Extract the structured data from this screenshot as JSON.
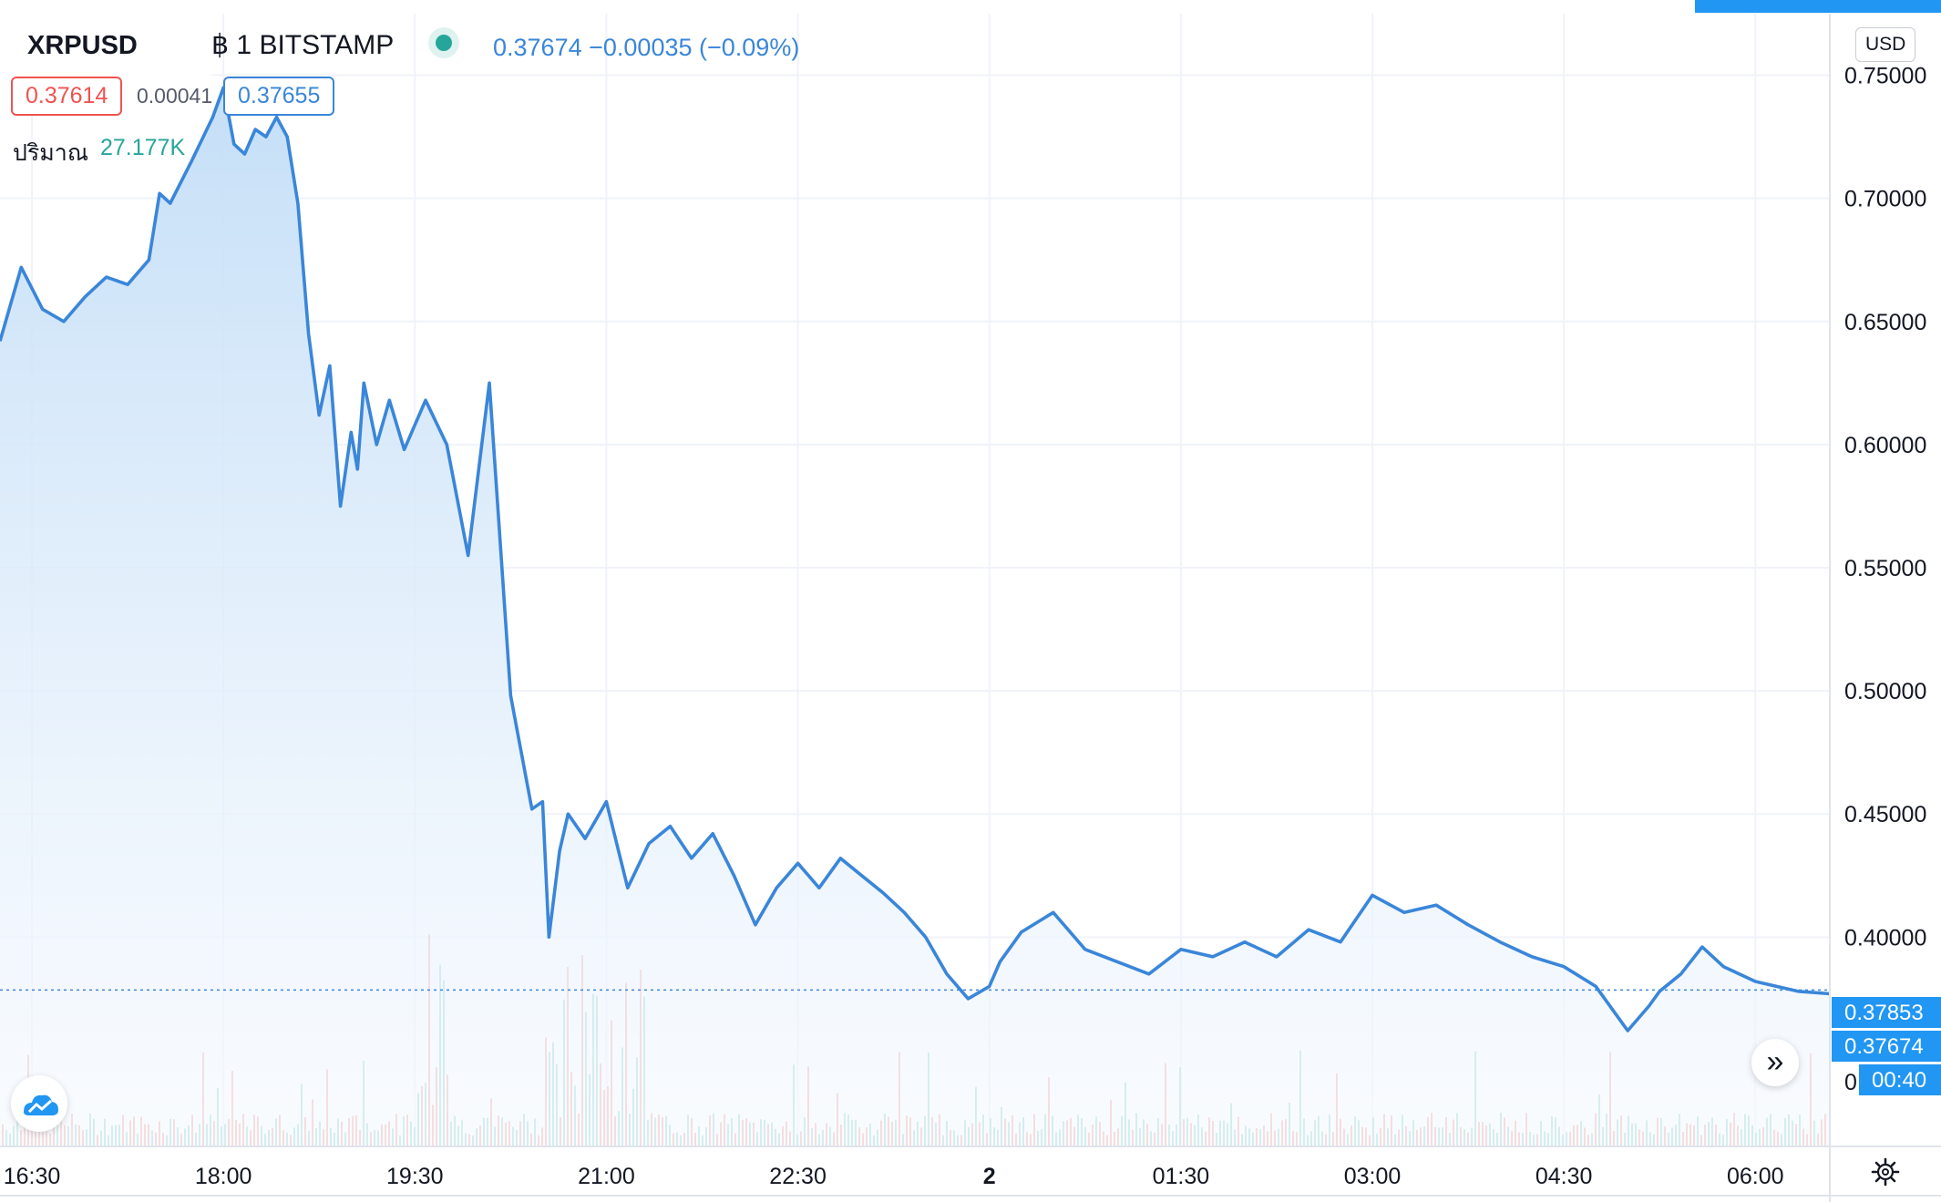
{
  "header": {
    "symbol": "XRPUSD",
    "interval": "฿ 1",
    "exchange": "BITSTAMP",
    "last_price": "0.37674",
    "change": "−0.00035",
    "change_pct": "(−0.09%)",
    "bid": "0.37614",
    "spread": "0.00041",
    "ask": "0.37655",
    "volume_label": "ปริมาณ",
    "volume_value": "27.177K",
    "currency_button": "USD",
    "scroll_right_icon": "double-chevron-right-icon",
    "settings_icon": "gear-icon",
    "logo_icon": "tradingview-cloud-icon"
  },
  "colors": {
    "line": "#3a86d9",
    "area_top": "#c5dff7",
    "area_bottom": "#f5f9fe",
    "volume_up": "#a8dbd5",
    "volume_down": "#f4b6b3",
    "grid": "#f0f3fa",
    "last_price_tag": "#2196f3",
    "accent": "#2196f3"
  },
  "chart_data": {
    "type": "area",
    "title": "XRPUSD",
    "xlabel": "",
    "ylabel": "",
    "x_ticks": [
      "16:30",
      "18:00",
      "19:30",
      "21:00",
      "22:30",
      "2",
      "01:30",
      "03:00",
      "04:30",
      "06:00"
    ],
    "y_ticks": [
      "0.75000",
      "0.70000",
      "0.65000",
      "0.60000",
      "0.55000",
      "0.50000",
      "0.45000",
      "0.40000"
    ],
    "ylim": [
      0.315,
      0.775
    ],
    "grid": true,
    "price_tags": [
      {
        "label": "0.37853",
        "value": 0.37853
      },
      {
        "label": "0.37674",
        "value": 0.37674
      },
      {
        "label": "00:40",
        "value": 0.3625
      }
    ],
    "partial_tick_label": "0.",
    "series": [
      {
        "x": [
          "16:15",
          "16:25",
          "16:35",
          "16:45",
          "16:55",
          "17:05",
          "17:15",
          "17:25",
          "17:30",
          "17:35",
          "17:45",
          "17:55",
          "18:00",
          "18:05",
          "18:10",
          "18:15",
          "18:20",
          "18:25",
          "18:30",
          "18:35",
          "18:40",
          "18:45",
          "18:50",
          "18:55",
          "19:00",
          "19:03",
          "19:06",
          "19:12",
          "19:18",
          "19:25",
          "19:35",
          "19:45",
          "19:55",
          "20:05",
          "20:15",
          "20:25",
          "20:30",
          "20:33",
          "20:38",
          "20:42",
          "20:50",
          "21:00",
          "21:10",
          "21:20",
          "21:30",
          "21:40",
          "21:50",
          "22:00",
          "22:10",
          "22:20",
          "22:30",
          "22:40",
          "22:50",
          "23:00",
          "23:10",
          "23:20",
          "23:30",
          "23:40",
          "23:50",
          "00:00",
          "00:05",
          "00:15",
          "00:30",
          "00:45",
          "01:00",
          "01:15",
          "01:30",
          "01:45",
          "02:00",
          "02:15",
          "02:30",
          "02:45",
          "03:00",
          "03:15",
          "03:30",
          "03:45",
          "04:00",
          "04:15",
          "04:30",
          "04:45",
          "05:00",
          "05:10",
          "05:15",
          "05:25",
          "05:35",
          "05:45",
          "06:00",
          "06:10",
          "06:20",
          "06:35"
        ],
        "values": [
          0.642,
          0.672,
          0.655,
          0.65,
          0.66,
          0.668,
          0.665,
          0.675,
          0.702,
          0.698,
          0.715,
          0.733,
          0.745,
          0.722,
          0.718,
          0.728,
          0.725,
          0.733,
          0.725,
          0.698,
          0.645,
          0.612,
          0.632,
          0.575,
          0.605,
          0.59,
          0.625,
          0.6,
          0.618,
          0.598,
          0.618,
          0.6,
          0.555,
          0.625,
          0.498,
          0.452,
          0.455,
          0.4,
          0.435,
          0.45,
          0.44,
          0.455,
          0.42,
          0.438,
          0.445,
          0.432,
          0.442,
          0.425,
          0.405,
          0.42,
          0.43,
          0.42,
          0.432,
          0.425,
          0.418,
          0.41,
          0.4,
          0.385,
          0.375,
          0.38,
          0.39,
          0.402,
          0.41,
          0.395,
          0.39,
          0.385,
          0.395,
          0.392,
          0.398,
          0.392,
          0.403,
          0.398,
          0.417,
          0.41,
          0.413,
          0.405,
          0.398,
          0.392,
          0.388,
          0.38,
          0.362,
          0.372,
          0.378,
          0.385,
          0.396,
          0.388,
          0.382,
          0.38,
          0.378,
          0.377
        ]
      }
    ]
  }
}
